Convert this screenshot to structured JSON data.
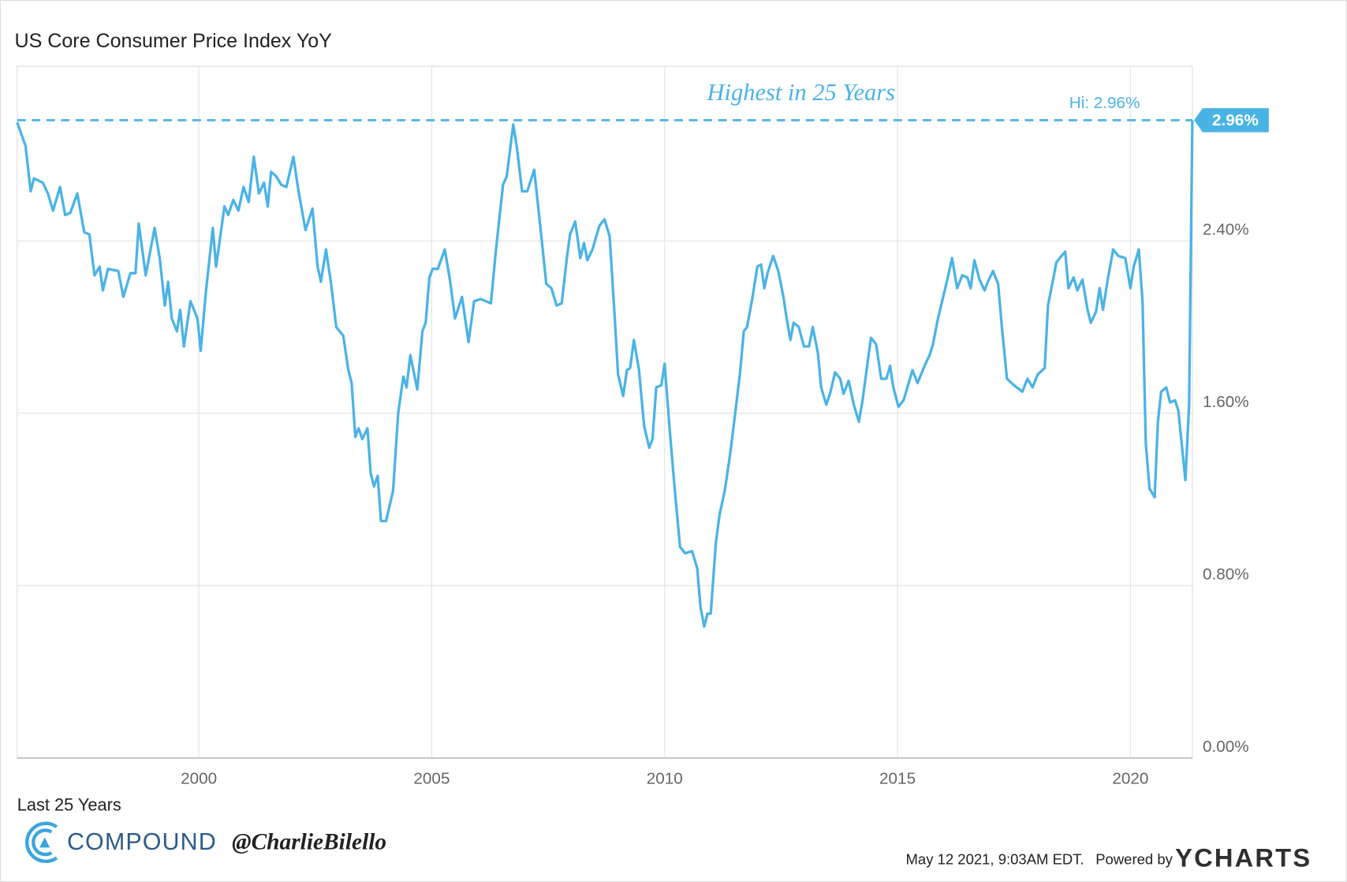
{
  "chart_data": {
    "type": "line",
    "title": "US Core Consumer Price Index YoY",
    "subtitle": "Last 25 Years",
    "annotation": "Highest in 25 Years",
    "high": {
      "value": 2.96,
      "label": "2.96%",
      "text": "Hi: 2.96%"
    },
    "brand": {
      "name": "COMPOUND",
      "handle": "@CharlieBilello"
    },
    "footer": {
      "timestamp": "May 12 2021, 9:03AM EDT.",
      "powered": "Powered by",
      "provider": "YCHARTS"
    },
    "xlim": [
      1996.1,
      2021.33
    ],
    "xticks": [
      2000,
      2005,
      2010,
      2015,
      2020
    ],
    "ylim": [
      0,
      3.21
    ],
    "yticks": [
      {
        "value": 0,
        "label": "0.00%"
      },
      {
        "value": 0.8,
        "label": "0.80%"
      },
      {
        "value": 1.6,
        "label": "1.60%"
      },
      {
        "value": 2.4,
        "label": "2.40%"
      }
    ],
    "grid": true,
    "x": [
      1996.1,
      1996.28,
      1996.39,
      1996.46,
      1996.65,
      1996.76,
      1996.87,
      1997.02,
      1997.13,
      1997.24,
      1997.39,
      1997.54,
      1997.65,
      1997.76,
      1997.87,
      1997.94,
      1998.05,
      1998.27,
      1998.38,
      1998.53,
      1998.64,
      1998.71,
      1998.86,
      1999.05,
      1999.16,
      1999.27,
      1999.34,
      1999.42,
      1999.53,
      1999.6,
      1999.68,
      1999.82,
      1999.97,
      2000.04,
      2000.15,
      2000.3,
      2000.37,
      2000.55,
      2000.63,
      2000.74,
      2000.85,
      2000.96,
      2001.07,
      2001.18,
      2001.29,
      2001.4,
      2001.48,
      2001.55,
      2001.66,
      2001.77,
      2001.88,
      2002.03,
      2002.14,
      2002.29,
      2002.44,
      2002.55,
      2002.62,
      2002.73,
      2002.84,
      2002.95,
      2003.1,
      2003.21,
      2003.28,
      2003.36,
      2003.43,
      2003.51,
      2003.62,
      2003.69,
      2003.76,
      2003.84,
      2003.91,
      2004.02,
      2004.17,
      2004.28,
      2004.39,
      2004.46,
      2004.54,
      2004.69,
      2004.8,
      2004.87,
      2004.95,
      2005.02,
      2005.13,
      2005.28,
      2005.39,
      2005.5,
      2005.65,
      2005.79,
      2005.91,
      2006.05,
      2006.27,
      2006.38,
      2006.53,
      2006.61,
      2006.75,
      2006.83,
      2006.94,
      2007.05,
      2007.2,
      2007.31,
      2007.46,
      2007.57,
      2007.68,
      2007.79,
      2007.9,
      2007.97,
      2008.08,
      2008.19,
      2008.27,
      2008.34,
      2008.45,
      2008.6,
      2008.71,
      2008.82,
      2008.93,
      2009.0,
      2009.11,
      2009.19,
      2009.26,
      2009.34,
      2009.45,
      2009.56,
      2009.67,
      2009.74,
      2009.82,
      2009.93,
      2010.0,
      2010.11,
      2010.22,
      2010.33,
      2010.44,
      2010.59,
      2010.7,
      2010.77,
      2010.85,
      2010.92,
      2010.99,
      2011.1,
      2011.18,
      2011.29,
      2011.4,
      2011.51,
      2011.62,
      2011.7,
      2011.77,
      2011.88,
      2011.99,
      2012.07,
      2012.14,
      2012.21,
      2012.33,
      2012.44,
      2012.55,
      2012.62,
      2012.7,
      2012.77,
      2012.88,
      2012.99,
      2013.1,
      2013.18,
      2013.29,
      2013.36,
      2013.47,
      2013.55,
      2013.66,
      2013.77,
      2013.84,
      2013.95,
      2014.06,
      2014.17,
      2014.25,
      2014.36,
      2014.43,
      2014.54,
      2014.65,
      2014.76,
      2014.84,
      2014.91,
      2015.02,
      2015.13,
      2015.24,
      2015.32,
      2015.43,
      2015.58,
      2015.69,
      2015.76,
      2015.87,
      2015.98,
      2016.09,
      2016.17,
      2016.28,
      2016.39,
      2016.5,
      2016.57,
      2016.65,
      2016.76,
      2016.87,
      2016.94,
      2017.05,
      2017.16,
      2017.24,
      2017.35,
      2017.5,
      2017.68,
      2017.79,
      2017.9,
      2018.01,
      2018.16,
      2018.23,
      2018.34,
      2018.41,
      2018.52,
      2018.6,
      2018.67,
      2018.78,
      2018.86,
      2018.97,
      2019.08,
      2019.15,
      2019.26,
      2019.34,
      2019.41,
      2019.52,
      2019.63,
      2019.74,
      2019.89,
      2020.0,
      2020.07,
      2020.18,
      2020.26,
      2020.33,
      2020.41,
      2020.52,
      2020.59,
      2020.66,
      2020.77,
      2020.85,
      2020.96,
      2021.03,
      2021.11,
      2021.18,
      2021.26,
      2021.33
    ],
    "series": [
      {
        "name": "US Core Consumer Price Index YoY",
        "color": "#4ab3e6",
        "values": [
          2.95,
          2.84,
          2.63,
          2.69,
          2.67,
          2.62,
          2.54,
          2.65,
          2.52,
          2.53,
          2.62,
          2.44,
          2.43,
          2.24,
          2.28,
          2.17,
          2.27,
          2.26,
          2.14,
          2.25,
          2.25,
          2.48,
          2.24,
          2.46,
          2.32,
          2.1,
          2.21,
          2.04,
          1.98,
          2.08,
          1.91,
          2.12,
          2.04,
          1.89,
          2.16,
          2.46,
          2.28,
          2.56,
          2.52,
          2.59,
          2.54,
          2.65,
          2.58,
          2.79,
          2.62,
          2.67,
          2.56,
          2.72,
          2.7,
          2.66,
          2.65,
          2.79,
          2.63,
          2.45,
          2.55,
          2.28,
          2.21,
          2.36,
          2.2,
          2.0,
          1.96,
          1.8,
          1.74,
          1.49,
          1.53,
          1.48,
          1.53,
          1.32,
          1.26,
          1.31,
          1.1,
          1.1,
          1.24,
          1.6,
          1.77,
          1.72,
          1.87,
          1.71,
          1.98,
          2.02,
          2.23,
          2.27,
          2.27,
          2.36,
          2.22,
          2.04,
          2.14,
          1.93,
          2.12,
          2.13,
          2.11,
          2.36,
          2.66,
          2.7,
          2.94,
          2.83,
          2.63,
          2.63,
          2.73,
          2.51,
          2.2,
          2.18,
          2.1,
          2.11,
          2.32,
          2.43,
          2.49,
          2.32,
          2.39,
          2.31,
          2.36,
          2.47,
          2.5,
          2.42,
          2.04,
          1.78,
          1.68,
          1.8,
          1.81,
          1.94,
          1.8,
          1.54,
          1.44,
          1.48,
          1.72,
          1.73,
          1.83,
          1.52,
          1.24,
          0.98,
          0.95,
          0.96,
          0.88,
          0.7,
          0.61,
          0.67,
          0.67,
          1.0,
          1.13,
          1.24,
          1.4,
          1.59,
          1.79,
          1.98,
          2.0,
          2.13,
          2.28,
          2.29,
          2.18,
          2.25,
          2.33,
          2.26,
          2.14,
          2.04,
          1.94,
          2.02,
          2.0,
          1.91,
          1.91,
          2.0,
          1.88,
          1.72,
          1.64,
          1.69,
          1.79,
          1.76,
          1.69,
          1.75,
          1.64,
          1.56,
          1.66,
          1.84,
          1.95,
          1.92,
          1.76,
          1.76,
          1.82,
          1.72,
          1.63,
          1.66,
          1.74,
          1.8,
          1.74,
          1.82,
          1.87,
          1.92,
          2.04,
          2.14,
          2.24,
          2.32,
          2.18,
          2.24,
          2.23,
          2.18,
          2.31,
          2.22,
          2.17,
          2.21,
          2.26,
          2.2,
          2.0,
          1.76,
          1.73,
          1.7,
          1.76,
          1.72,
          1.78,
          1.81,
          2.1,
          2.22,
          2.3,
          2.33,
          2.35,
          2.18,
          2.23,
          2.17,
          2.22,
          2.08,
          2.02,
          2.07,
          2.18,
          2.08,
          2.23,
          2.36,
          2.33,
          2.32,
          2.18,
          2.28,
          2.36,
          2.12,
          1.46,
          1.25,
          1.21,
          1.56,
          1.7,
          1.72,
          1.65,
          1.66,
          1.61,
          1.44,
          1.29,
          1.64,
          2.96
        ]
      }
    ]
  }
}
